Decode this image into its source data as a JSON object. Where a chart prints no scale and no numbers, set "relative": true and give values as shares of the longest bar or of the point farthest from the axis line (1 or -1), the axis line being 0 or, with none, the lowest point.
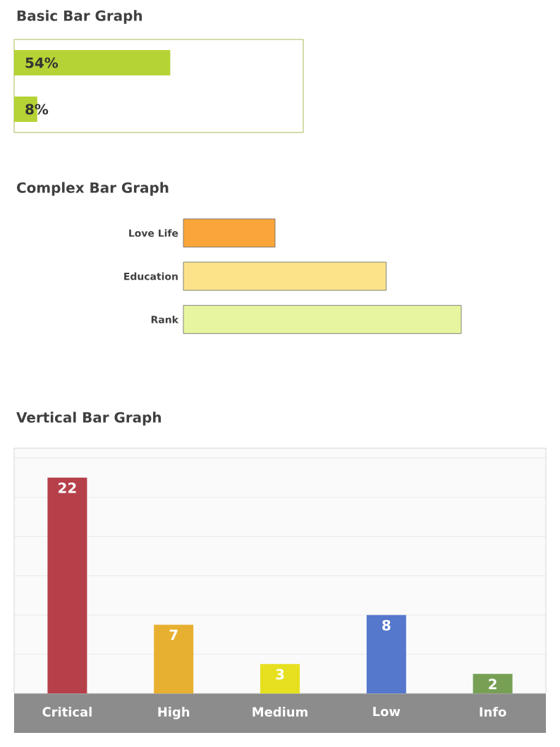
{
  "chart_data": [
    {
      "type": "bar",
      "title": "Basic Bar Graph",
      "orientation": "horizontal",
      "categories": [
        null,
        null
      ],
      "values": [
        54,
        8
      ],
      "value_labels": [
        "54%",
        "8%"
      ],
      "color": "#b5d334",
      "xlim": [
        0,
        100
      ],
      "tick_labels": false
    },
    {
      "type": "bar",
      "title": "Complex Bar Graph",
      "orientation": "horizontal",
      "relative": true,
      "categories": [
        "Love Life",
        "Education",
        "Rank"
      ],
      "values": [
        0.33,
        0.73,
        1.0
      ],
      "colors": [
        "#f9a53a",
        "#fce38a",
        "#e8f5a0"
      ],
      "tick_labels": "y"
    },
    {
      "type": "bar",
      "title": "Vertical Bar Graph",
      "categories": [
        "Critical",
        "High",
        "Medium",
        "Low",
        "Info"
      ],
      "values": [
        22,
        7,
        3,
        8,
        2
      ],
      "value_labels": [
        "22",
        "7",
        "3",
        "8",
        "2"
      ],
      "colors": [
        "#b5404a",
        "#e8b030",
        "#e6e020",
        "#5577cc",
        "#77a055"
      ],
      "ylim": [
        0,
        25
      ],
      "yticks": [
        {
          "value": 4,
          "label": null
        },
        {
          "value": 8,
          "label": null
        },
        {
          "value": 12,
          "label": null
        },
        {
          "value": 16,
          "label": null
        },
        {
          "value": 20,
          "label": null
        },
        {
          "value": 24,
          "label": null
        }
      ],
      "grid": "y",
      "tick_labels": "x"
    }
  ]
}
